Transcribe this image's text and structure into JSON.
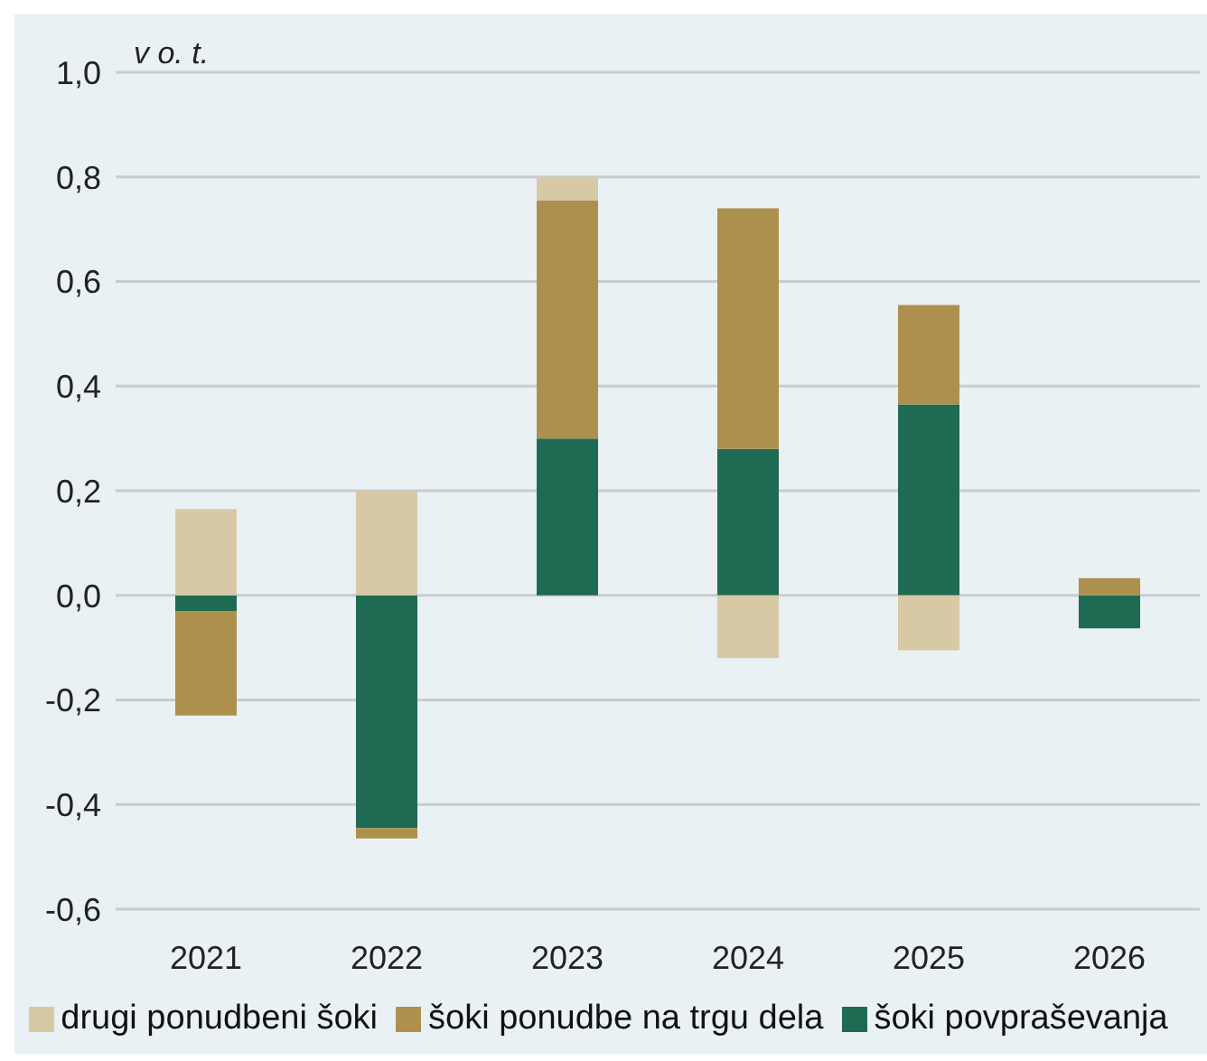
{
  "chart_data": {
    "type": "bar",
    "stacked": true,
    "ylabel": "v o. t.",
    "categories": [
      "2021",
      "2022",
      "2023",
      "2024",
      "2025",
      "2026"
    ],
    "series": [
      {
        "name": "šoki povpraševanja",
        "color": "#1f6a52",
        "values": [
          -0.03,
          -0.445,
          0.3,
          0.28,
          0.365,
          -0.063
        ]
      },
      {
        "name": "šoki ponudbe na trgu dela",
        "color": "#ad904d",
        "values": [
          -0.2,
          -0.02,
          0.455,
          0.46,
          0.19,
          0.033
        ]
      },
      {
        "name": "drugi ponudbeni šoki",
        "color": "#d8c9a6",
        "values": [
          0.165,
          0.2,
          0.045,
          -0.12,
          -0.105,
          null
        ]
      }
    ],
    "ylim": [
      -0.6,
      1.0
    ],
    "yticks": [
      {
        "value": -0.6,
        "label": "-0,6"
      },
      {
        "value": -0.4,
        "label": "-0,4"
      },
      {
        "value": -0.2,
        "label": "-0,2"
      },
      {
        "value": 0,
        "label": "0,0"
      },
      {
        "value": 0.2,
        "label": "0,2"
      },
      {
        "value": 0.4,
        "label": "0,4"
      },
      {
        "value": 0.6,
        "label": "0,6"
      },
      {
        "value": 0.8,
        "label": "0,8"
      },
      {
        "value": 1.0,
        "label": "1,0"
      }
    ],
    "grid": "y",
    "legend": "bottom"
  }
}
